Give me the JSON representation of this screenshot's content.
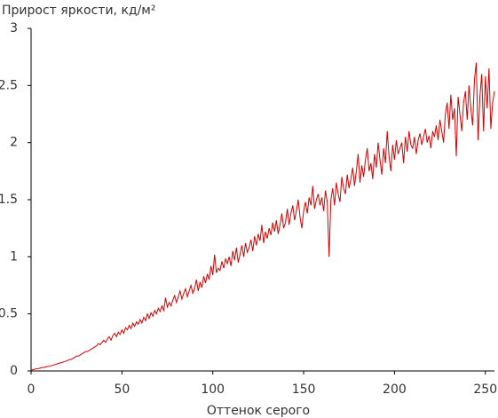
{
  "chart_data": {
    "type": "line",
    "title": "Прирост яркости, кд/м²",
    "x_label": "Оттенок серого",
    "x": [
      0,
      1,
      2,
      3,
      4,
      5,
      6,
      7,
      8,
      9,
      10,
      11,
      12,
      13,
      14,
      15,
      16,
      17,
      18,
      19,
      20,
      21,
      22,
      23,
      24,
      25,
      26,
      27,
      28,
      29,
      30,
      31,
      32,
      33,
      34,
      35,
      36,
      37,
      38,
      39,
      40,
      41,
      42,
      43,
      44,
      45,
      46,
      47,
      48,
      49,
      50,
      51,
      52,
      53,
      54,
      55,
      56,
      57,
      58,
      59,
      60,
      61,
      62,
      63,
      64,
      65,
      66,
      67,
      68,
      69,
      70,
      71,
      72,
      73,
      74,
      75,
      76,
      77,
      78,
      79,
      80,
      81,
      82,
      83,
      84,
      85,
      86,
      87,
      88,
      89,
      90,
      91,
      92,
      93,
      94,
      95,
      96,
      97,
      98,
      99,
      100,
      101,
      102,
      103,
      104,
      105,
      106,
      107,
      108,
      109,
      110,
      111,
      112,
      113,
      114,
      115,
      116,
      117,
      118,
      119,
      120,
      121,
      122,
      123,
      124,
      125,
      126,
      127,
      128,
      129,
      130,
      131,
      132,
      133,
      134,
      135,
      136,
      137,
      138,
      139,
      140,
      141,
      142,
      143,
      144,
      145,
      146,
      147,
      148,
      149,
      150,
      151,
      152,
      153,
      154,
      155,
      156,
      157,
      158,
      159,
      160,
      161,
      162,
      163,
      164,
      165,
      166,
      167,
      168,
      169,
      170,
      171,
      172,
      173,
      174,
      175,
      176,
      177,
      178,
      179,
      180,
      181,
      182,
      183,
      184,
      185,
      186,
      187,
      188,
      189,
      190,
      191,
      192,
      193,
      194,
      195,
      196,
      197,
      198,
      199,
      200,
      201,
      202,
      203,
      204,
      205,
      206,
      207,
      208,
      209,
      210,
      211,
      212,
      213,
      214,
      215,
      216,
      217,
      218,
      219,
      220,
      221,
      222,
      223,
      224,
      225,
      226,
      227,
      228,
      229,
      230,
      231,
      232,
      233,
      234,
      235,
      236,
      237,
      238,
      239,
      240,
      241,
      242,
      243,
      244,
      245,
      246,
      247,
      248,
      249,
      250,
      251,
      252,
      253,
      254,
      255
    ],
    "series": [
      {
        "color": "#d40000",
        "values": [
          0.01,
          0.01,
          0.015,
          0.02,
          0.02,
          0.025,
          0.03,
          0.03,
          0.035,
          0.04,
          0.04,
          0.045,
          0.05,
          0.055,
          0.06,
          0.065,
          0.07,
          0.075,
          0.08,
          0.085,
          0.09,
          0.1,
          0.1,
          0.11,
          0.12,
          0.13,
          0.13,
          0.14,
          0.15,
          0.16,
          0.17,
          0.17,
          0.18,
          0.19,
          0.2,
          0.21,
          0.22,
          0.24,
          0.23,
          0.25,
          0.27,
          0.25,
          0.28,
          0.3,
          0.27,
          0.31,
          0.33,
          0.3,
          0.34,
          0.32,
          0.36,
          0.33,
          0.38,
          0.36,
          0.4,
          0.37,
          0.42,
          0.39,
          0.43,
          0.41,
          0.45,
          0.42,
          0.47,
          0.44,
          0.5,
          0.46,
          0.51,
          0.48,
          0.53,
          0.5,
          0.55,
          0.52,
          0.57,
          0.53,
          0.64,
          0.56,
          0.6,
          0.57,
          0.62,
          0.66,
          0.6,
          0.65,
          0.7,
          0.63,
          0.68,
          0.72,
          0.65,
          0.7,
          0.75,
          0.68,
          0.72,
          0.8,
          0.7,
          0.78,
          0.73,
          0.83,
          0.77,
          0.85,
          0.8,
          0.92,
          0.84,
          1.02,
          0.86,
          0.9,
          0.88,
          0.96,
          0.9,
          0.98,
          0.94,
          1.0,
          0.92,
          1.05,
          0.97,
          1.08,
          0.95,
          1.02,
          1.1,
          1.0,
          1.12,
          1.04,
          1.08,
          1.15,
          1.05,
          1.18,
          1.1,
          1.2,
          1.14,
          1.28,
          1.12,
          1.22,
          1.16,
          1.25,
          1.19,
          1.3,
          1.22,
          1.32,
          1.2,
          1.28,
          1.38,
          1.25,
          1.3,
          1.42,
          1.28,
          1.38,
          1.45,
          1.32,
          1.4,
          1.5,
          1.35,
          1.25,
          1.4,
          1.48,
          1.38,
          1.52,
          1.45,
          1.62,
          1.42,
          1.5,
          1.55,
          1.45,
          1.52,
          1.4,
          1.58,
          1.48,
          1.0,
          1.5,
          1.6,
          1.45,
          1.65,
          1.55,
          1.48,
          1.7,
          1.6,
          1.55,
          1.72,
          1.6,
          1.68,
          1.78,
          1.62,
          1.75,
          1.9,
          1.65,
          1.8,
          1.7,
          1.85,
          1.95,
          1.75,
          1.82,
          1.68,
          1.9,
          1.78,
          2.0,
          1.85,
          1.72,
          1.95,
          1.82,
          2.1,
          1.88,
          1.75,
          1.98,
          1.85,
          2.02,
          1.9,
          1.95,
          2.0,
          1.82,
          2.05,
          1.92,
          2.1,
          1.98,
          1.95,
          2.05,
          1.9,
          2.02,
          2.08,
          1.98,
          2.05,
          2.12,
          2.0,
          2.06,
          1.95,
          2.1,
          2.05,
          2.15,
          2.02,
          2.2,
          2.1,
          2.0,
          2.25,
          2.35,
          2.12,
          2.42,
          2.2,
          2.3,
          1.88,
          2.4,
          2.25,
          2.1,
          2.35,
          2.45,
          2.2,
          2.5,
          2.3,
          2.15,
          2.55,
          2.7,
          2.02,
          2.4,
          2.6,
          2.1,
          2.58,
          2.3,
          2.65,
          2.12,
          2.35,
          2.45
        ]
      }
    ],
    "xlim": [
      0,
      255
    ],
    "xticks": [
      0,
      50,
      100,
      150,
      200,
      250
    ],
    "ylim": [
      0,
      3
    ],
    "yticks": [
      0,
      0.5,
      1,
      1.5,
      2,
      2.5,
      3
    ]
  }
}
